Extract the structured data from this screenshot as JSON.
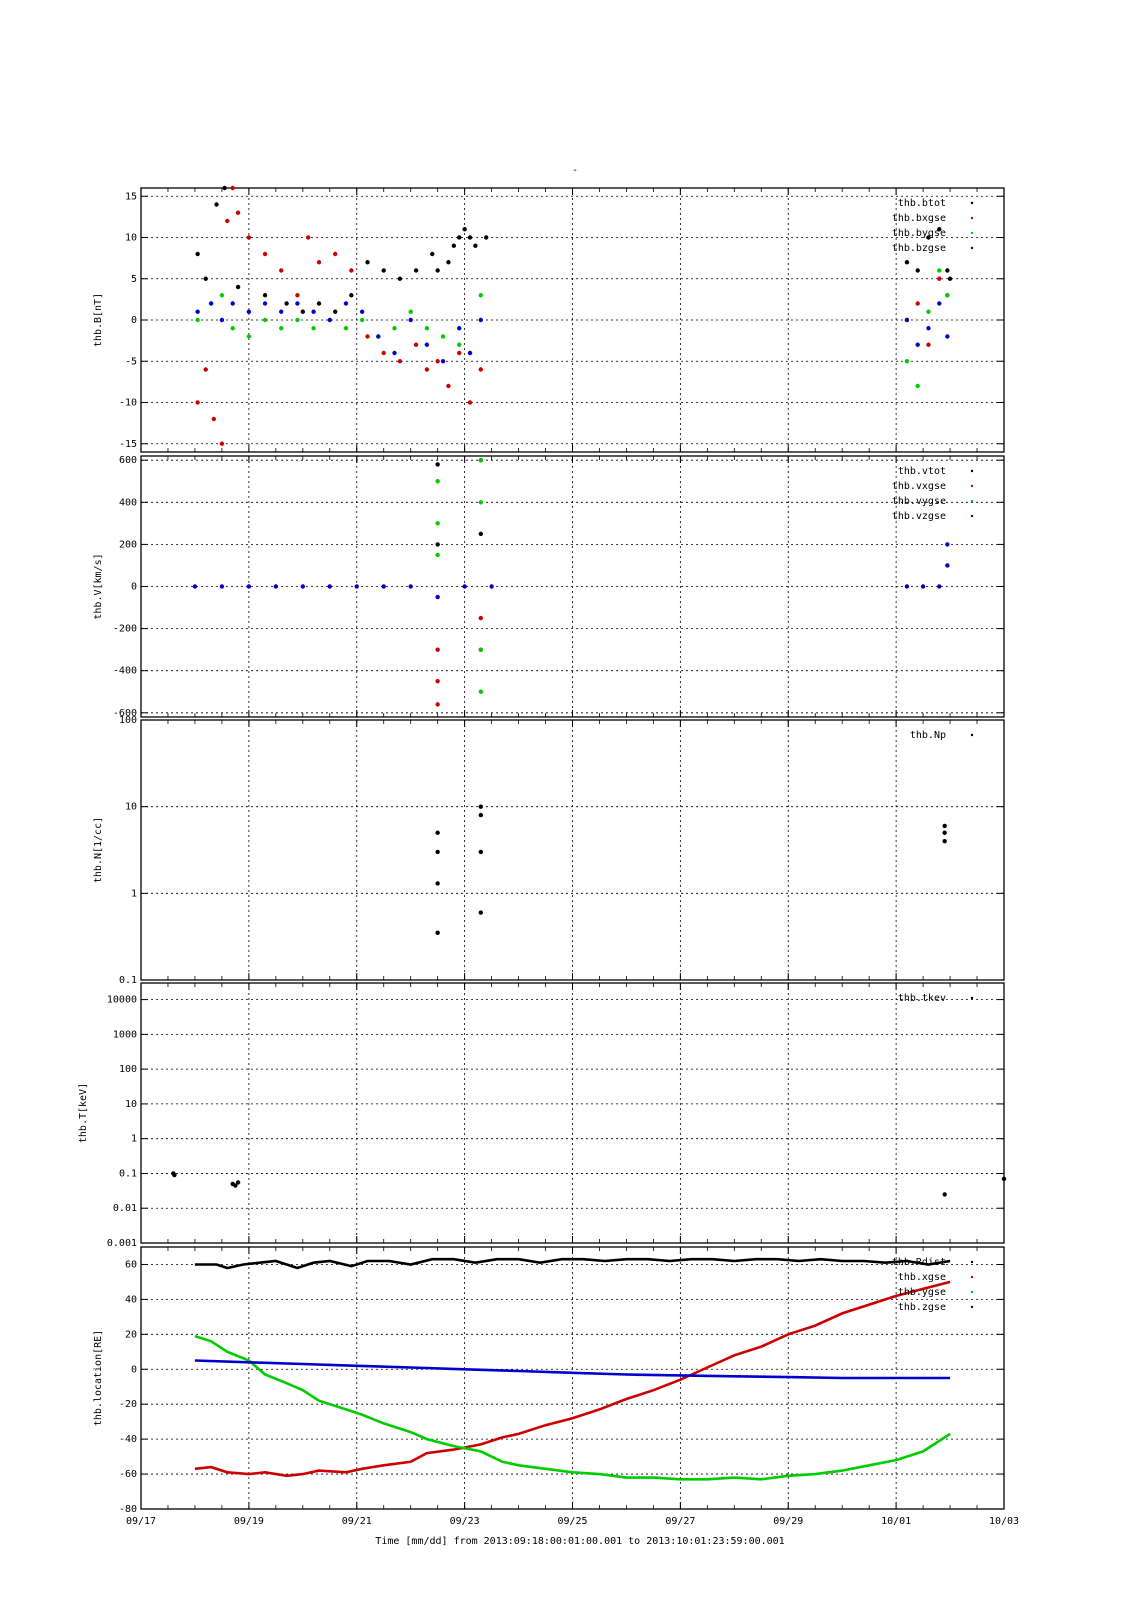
{
  "figure": {
    "title_mark": "-",
    "footer": "Time [mm/dd]  from 2013:09:18:00:01:00.001  to  2013:10:01:23:59:00.001",
    "x_tick_labels": [
      "09/17",
      "09/19",
      "09/21",
      "09/23",
      "09/25",
      "09/27",
      "09/29",
      "10/01",
      "10/03"
    ],
    "x_range_days": [
      0,
      16
    ],
    "colors": {
      "black": "#000000",
      "red": "#cc0000",
      "green": "#00cc00",
      "blue": "#0000cc"
    }
  },
  "chart_data": [
    {
      "type": "scatter",
      "ylabel": "thb.B[nT]",
      "ylim": [
        -16,
        16
      ],
      "yticks": [
        -15,
        -10,
        -5,
        0,
        5,
        10,
        15
      ],
      "scale": "linear",
      "legend_position": "top-right",
      "series": [
        {
          "name": "thb.btot",
          "color": "#000000",
          "x": [
            1.05,
            1.2,
            1.4,
            1.55,
            1.8,
            2.3,
            2.7,
            3.0,
            3.3,
            3.6,
            3.9,
            4.2,
            4.5,
            4.8,
            5.1,
            5.4,
            5.5,
            5.7,
            5.8,
            5.9,
            6.0,
            6.1,
            6.2,
            6.4,
            14.2,
            14.4,
            14.6,
            14.8,
            14.95,
            15.0
          ],
          "y": [
            8,
            5,
            14,
            16,
            4,
            3,
            2,
            1,
            2,
            1,
            3,
            7,
            6,
            5,
            6,
            8,
            6,
            7,
            9,
            10,
            11,
            10,
            9,
            10,
            7,
            6,
            10,
            11,
            6,
            5
          ]
        },
        {
          "name": "thb.bxgse",
          "color": "#cc0000",
          "x": [
            1.05,
            1.2,
            1.35,
            1.5,
            1.6,
            1.7,
            1.8,
            2.0,
            2.3,
            2.6,
            2.9,
            3.1,
            3.3,
            3.6,
            3.9,
            4.2,
            4.5,
            4.8,
            5.1,
            5.3,
            5.5,
            5.7,
            5.9,
            6.1,
            6.3,
            14.2,
            14.4,
            14.6,
            14.8,
            14.95
          ],
          "y": [
            -10,
            -6,
            -12,
            -15,
            12,
            16,
            13,
            10,
            8,
            6,
            3,
            10,
            7,
            8,
            6,
            -2,
            -4,
            -5,
            -3,
            -6,
            -5,
            -8,
            -4,
            -10,
            -6,
            0,
            2,
            -3,
            5,
            3
          ]
        },
        {
          "name": "thb.bygse",
          "color": "#00cc00",
          "x": [
            1.05,
            1.3,
            1.5,
            1.7,
            2.0,
            2.3,
            2.6,
            2.9,
            3.2,
            3.5,
            3.8,
            4.1,
            4.4,
            4.7,
            5.0,
            5.3,
            5.6,
            5.9,
            6.1,
            6.3,
            14.2,
            14.4,
            14.6,
            14.8,
            14.95
          ],
          "y": [
            0,
            2,
            3,
            -1,
            -2,
            0,
            -1,
            0,
            -1,
            0,
            -1,
            0,
            -2,
            -1,
            1,
            -1,
            -2,
            -3,
            -4,
            3,
            -5,
            -8,
            1,
            6,
            3
          ]
        },
        {
          "name": "thb.bzgse",
          "color": "#0000cc",
          "x": [
            1.05,
            1.3,
            1.5,
            1.7,
            2.0,
            2.3,
            2.6,
            2.9,
            3.2,
            3.5,
            3.8,
            4.1,
            4.4,
            4.7,
            5.0,
            5.3,
            5.6,
            5.9,
            6.1,
            6.3,
            14.2,
            14.4,
            14.6,
            14.8,
            14.95
          ],
          "y": [
            1,
            2,
            0,
            2,
            1,
            2,
            1,
            2,
            1,
            0,
            2,
            1,
            -2,
            -4,
            0,
            -3,
            -5,
            -1,
            -4,
            0,
            0,
            -3,
            -1,
            2,
            -2
          ]
        }
      ]
    },
    {
      "type": "scatter",
      "ylabel": "thb.V[km/s]",
      "ylim": [
        -620,
        620
      ],
      "yticks": [
        -600,
        -400,
        -200,
        0,
        200,
        400,
        600
      ],
      "scale": "linear",
      "legend_position": "top-right",
      "series": [
        {
          "name": "thb.vtot",
          "color": "#000000",
          "x": [
            5.5,
            5.5,
            6.3,
            6.3
          ],
          "y": [
            580,
            200,
            600,
            250
          ]
        },
        {
          "name": "thb.vxgse",
          "color": "#cc0000",
          "x": [
            5.5,
            5.5,
            5.5,
            6.3,
            6.3
          ],
          "y": [
            -300,
            -450,
            -560,
            -300,
            -150
          ]
        },
        {
          "name": "thb.vygse",
          "color": "#00cc00",
          "x": [
            5.5,
            5.5,
            5.5,
            6.3,
            6.3,
            6.3,
            6.3
          ],
          "y": [
            500,
            300,
            150,
            600,
            400,
            -300,
            -500
          ]
        },
        {
          "name": "thb.vzgse",
          "color": "#0000cc",
          "x": [
            1.0,
            1.5,
            2.0,
            2.5,
            3.0,
            3.5,
            4.0,
            4.5,
            5.0,
            5.5,
            6.0,
            6.5,
            14.2,
            14.5,
            14.8,
            14.95,
            14.95
          ],
          "y": [
            0,
            0,
            0,
            0,
            0,
            0,
            0,
            0,
            0,
            -50,
            0,
            0,
            0,
            0,
            0,
            200,
            100
          ]
        }
      ]
    },
    {
      "type": "scatter",
      "ylabel": "thb.N[1/cc]",
      "ylim": [
        0.1,
        100
      ],
      "yticks": [
        0.1,
        1,
        10,
        100
      ],
      "scale": "log",
      "legend_position": "top-right",
      "series": [
        {
          "name": "thb.Np",
          "color": "#000000",
          "x": [
            5.5,
            5.5,
            5.5,
            5.5,
            6.3,
            6.3,
            6.3,
            6.3,
            14.9,
            14.9,
            14.9
          ],
          "y": [
            5,
            3,
            1.3,
            0.35,
            10,
            8,
            3,
            0.6,
            6,
            5,
            4
          ]
        }
      ]
    },
    {
      "type": "scatter",
      "ylabel": "thb.T[keV]",
      "ylim": [
        0.001,
        30000
      ],
      "yticks": [
        0.001,
        0.01,
        0.1,
        1,
        10,
        100,
        1000,
        10000
      ],
      "ytick_labels": [
        "0.001",
        "0.01",
        "0.1",
        "1",
        "10",
        "100",
        "1000",
        "10000"
      ],
      "scale": "log",
      "legend_position": "top-right",
      "series": [
        {
          "name": "thb.tkev",
          "color": "#000000",
          "x": [
            0.6,
            0.62,
            1.7,
            1.75,
            1.8,
            14.9,
            16.0
          ],
          "y": [
            0.1,
            0.09,
            0.05,
            0.045,
            0.055,
            0.025,
            0.07
          ]
        }
      ]
    },
    {
      "type": "line",
      "ylabel": "thb.location[RE]",
      "ylim": [
        -80,
        70
      ],
      "yticks": [
        -80,
        -60,
        -40,
        -20,
        0,
        20,
        40,
        60
      ],
      "scale": "linear",
      "legend_position": "top-right",
      "series": [
        {
          "name": "thb.Rdist",
          "color": "#000000",
          "x": [
            1.0,
            1.4,
            1.6,
            1.9,
            2.2,
            2.5,
            2.9,
            3.2,
            3.5,
            3.9,
            4.2,
            4.6,
            5.0,
            5.4,
            5.8,
            6.2,
            6.6,
            7.0,
            7.4,
            7.8,
            8.2,
            8.6,
            9.0,
            9.4,
            9.8,
            10.2,
            10.6,
            11.0,
            11.4,
            11.8,
            12.2,
            12.6,
            13.0,
            13.4,
            13.8,
            14.2,
            14.6,
            15.0
          ],
          "y": [
            60,
            60,
            58,
            60,
            61,
            62,
            58,
            61,
            62,
            59,
            62,
            62,
            60,
            63,
            63,
            61,
            63,
            63,
            61,
            63,
            63,
            62,
            63,
            63,
            62,
            63,
            63,
            62,
            63,
            63,
            62,
            63,
            62,
            62,
            61,
            62,
            60,
            62
          ]
        },
        {
          "name": "thb.xgse",
          "color": "#cc0000",
          "x": [
            1.0,
            1.3,
            1.6,
            2.0,
            2.3,
            2.7,
            3.0,
            3.3,
            3.8,
            4.1,
            4.5,
            5.0,
            5.3,
            5.8,
            6.3,
            6.7,
            7.0,
            7.5,
            8.0,
            8.5,
            9.0,
            9.5,
            10.0,
            10.5,
            11.0,
            11.5,
            12.0,
            12.5,
            13.0,
            13.5,
            14.0,
            14.5,
            15.0
          ],
          "y": [
            -57,
            -56,
            -59,
            -60,
            -59,
            -61,
            -60,
            -58,
            -59,
            -57,
            -55,
            -53,
            -48,
            -46,
            -43,
            -39,
            -37,
            -32,
            -28,
            -23,
            -17,
            -12,
            -6,
            1,
            8,
            13,
            20,
            25,
            32,
            37,
            42,
            46,
            50
          ]
        },
        {
          "name": "thb.ygse",
          "color": "#00cc00",
          "x": [
            1.0,
            1.3,
            1.6,
            2.0,
            2.3,
            2.7,
            3.0,
            3.3,
            3.8,
            4.1,
            4.5,
            5.0,
            5.3,
            5.8,
            6.3,
            6.7,
            7.0,
            7.5,
            8.0,
            8.5,
            9.0,
            9.5,
            10.0,
            10.5,
            11.0,
            11.5,
            12.0,
            12.5,
            13.0,
            13.5,
            14.0,
            14.5,
            15.0
          ],
          "y": [
            19,
            16,
            10,
            5,
            -3,
            -8,
            -12,
            -18,
            -23,
            -26,
            -31,
            -36,
            -40,
            -44,
            -47,
            -53,
            -55,
            -57,
            -59,
            -60,
            -62,
            -62,
            -63,
            -63,
            -62,
            -63,
            -61,
            -60,
            -58,
            -55,
            -52,
            -47,
            -37
          ]
        },
        {
          "name": "thb.zgse",
          "color": "#0000cc",
          "x": [
            1.0,
            2.0,
            3.0,
            4.0,
            5.0,
            6.0,
            7.0,
            8.0,
            9.0,
            10.0,
            11.0,
            12.0,
            13.0,
            14.0,
            15.0
          ],
          "y": [
            5,
            4,
            3,
            2,
            1,
            0,
            -1,
            -2,
            -3,
            -3.5,
            -4,
            -4.5,
            -5,
            -5,
            -5
          ]
        }
      ]
    }
  ]
}
